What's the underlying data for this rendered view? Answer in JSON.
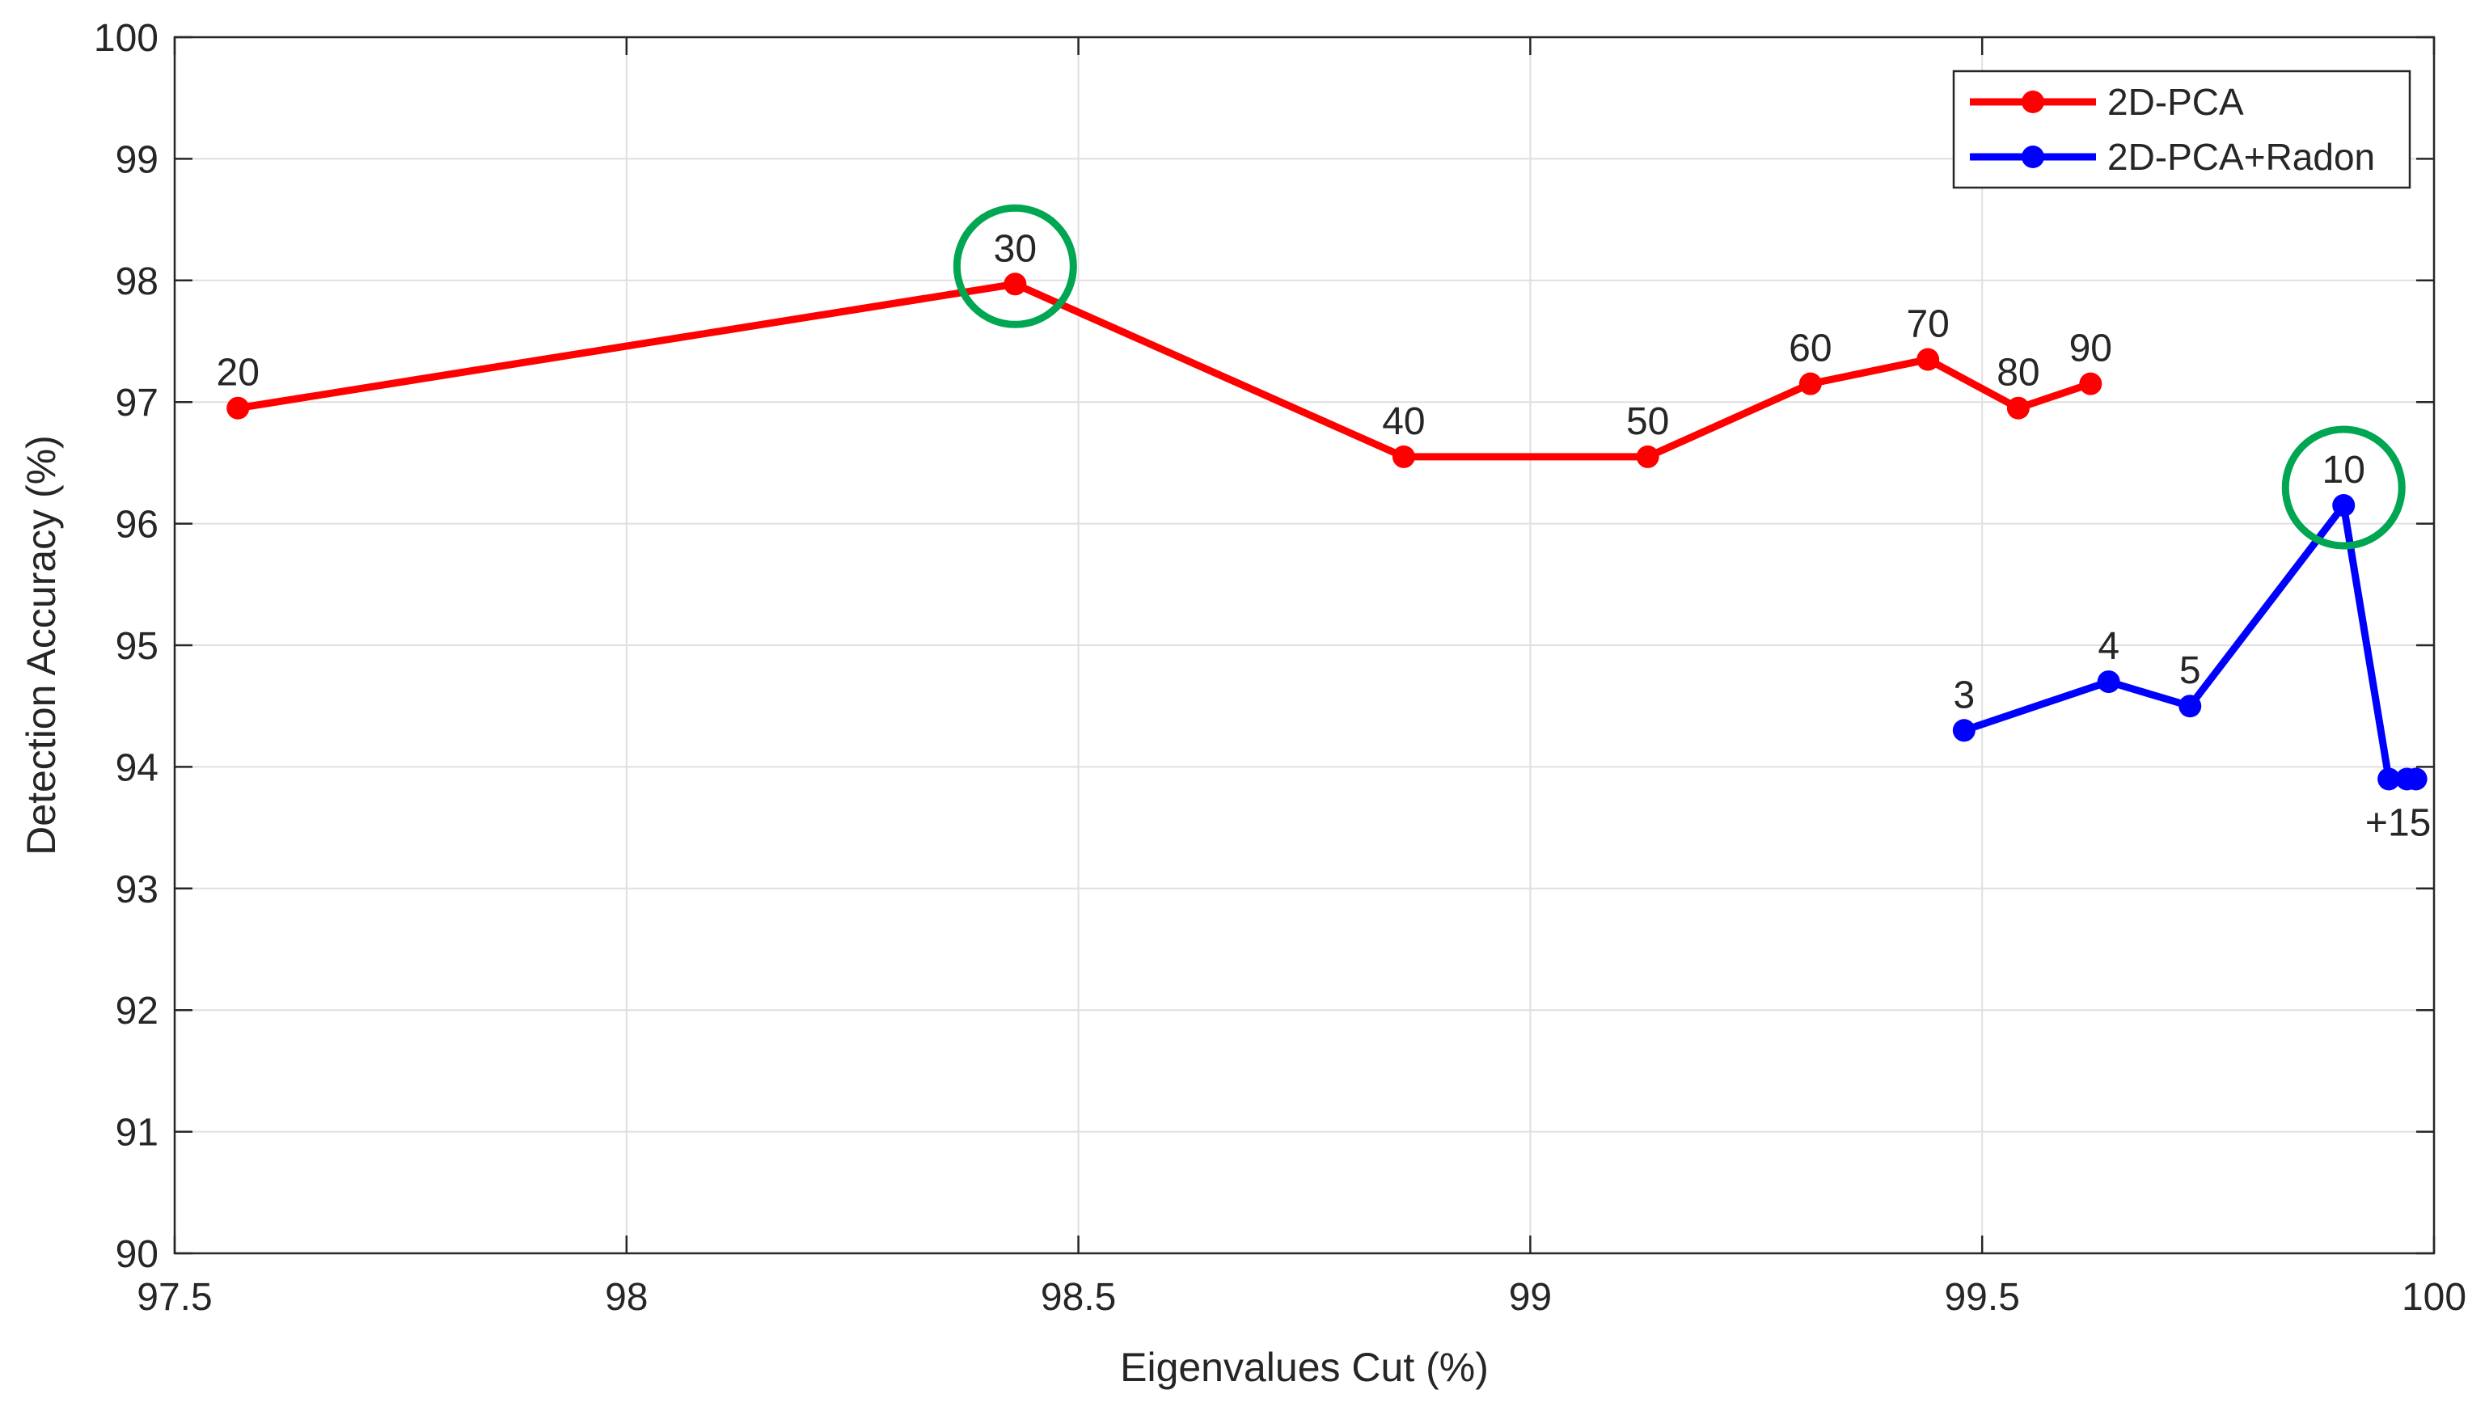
{
  "chart_data": {
    "type": "line",
    "xlabel": "Eigenvalues Cut (%)",
    "ylabel": "Detection Accuracy (%)",
    "xlim": [
      97.5,
      100
    ],
    "ylim": [
      90,
      100
    ],
    "xticks": [
      97.5,
      98,
      98.5,
      99,
      99.5,
      100
    ],
    "xtick_labels": [
      "97.5",
      "98",
      "98.5",
      "99",
      "99.5",
      "100"
    ],
    "yticks": [
      90,
      91,
      92,
      93,
      94,
      95,
      96,
      97,
      98,
      99,
      100
    ],
    "ytick_labels": [
      "90",
      "91",
      "92",
      "93",
      "94",
      "95",
      "96",
      "97",
      "98",
      "99",
      "100"
    ],
    "grid": true,
    "legend_position": "top-right",
    "series": [
      {
        "name": "2D-PCA",
        "color": "#ff0000",
        "points": [
          {
            "x": 97.57,
            "y": 96.95,
            "label": "20"
          },
          {
            "x": 98.43,
            "y": 97.97,
            "label": "30"
          },
          {
            "x": 98.86,
            "y": 96.55,
            "label": "40"
          },
          {
            "x": 99.13,
            "y": 96.55,
            "label": "50"
          },
          {
            "x": 99.31,
            "y": 97.15,
            "label": "60"
          },
          {
            "x": 99.44,
            "y": 97.35,
            "label": "70"
          },
          {
            "x": 99.54,
            "y": 96.95,
            "label": "80"
          },
          {
            "x": 99.62,
            "y": 97.15,
            "label": "90"
          }
        ]
      },
      {
        "name": "2D-PCA+Radon",
        "color": "#0000ff",
        "points": [
          {
            "x": 99.48,
            "y": 94.3,
            "label": "3"
          },
          {
            "x": 99.64,
            "y": 94.7,
            "label": "4"
          },
          {
            "x": 99.73,
            "y": 94.5,
            "label": "5"
          },
          {
            "x": 99.9,
            "y": 96.15,
            "label": "10"
          },
          {
            "x": 99.95,
            "y": 93.9,
            "label": ""
          },
          {
            "x": 99.97,
            "y": 93.9,
            "label": ""
          },
          {
            "x": 99.98,
            "y": 93.9,
            "label": "+15"
          }
        ]
      }
    ],
    "highlights": [
      {
        "series": "2D-PCA",
        "x": 98.43,
        "y": 97.97,
        "color": "#00a651"
      },
      {
        "series": "2D-PCA+Radon",
        "x": 99.9,
        "y": 96.15,
        "color": "#00a651"
      }
    ]
  }
}
